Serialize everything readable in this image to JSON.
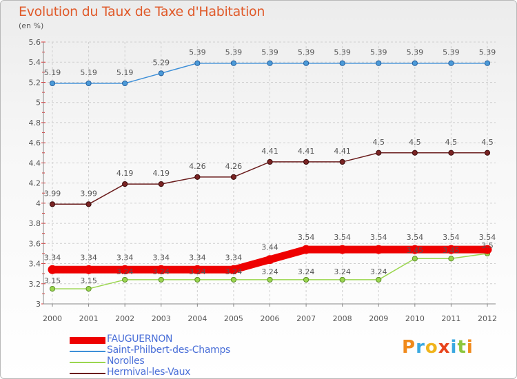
{
  "header": {
    "title": "Evolution du Taux de Taxe d'Habitation",
    "subtitle": "(en %)"
  },
  "chart_data": {
    "type": "line",
    "title": "Evolution du Taux de Taxe d'Habitation",
    "ylabel": "(en %)",
    "xlabel": "",
    "ylim": [
      3,
      5.6
    ],
    "yticks": [
      "3",
      "3.2",
      "3.4",
      "3.6",
      "3.8",
      "4",
      "4.2",
      "4.4",
      "4.6",
      "4.8",
      "5",
      "5.2",
      "5.4",
      "5.6"
    ],
    "x": [
      "2000",
      "2001",
      "2002",
      "2003",
      "2004",
      "2005",
      "2006",
      "2007",
      "2008",
      "2009",
      "2010",
      "2011",
      "2012"
    ],
    "grid": true,
    "legend_position": "bottom-left",
    "series": [
      {
        "name": "FAUGUERNON",
        "color": "#ee0000",
        "values": [
          3.34,
          3.34,
          3.34,
          3.34,
          3.34,
          3.34,
          3.44,
          3.54,
          3.54,
          3.54,
          3.54,
          3.54,
          3.54
        ],
        "labels": [
          "3.34",
          "3.34",
          "3.34",
          "3.34",
          "3.34",
          "3.34",
          "3.44",
          "3.54",
          "3.54",
          "3.54",
          "3.54",
          "3.54",
          "3.54"
        ]
      },
      {
        "name": "Saint-Philbert-des-Champs",
        "color": "#3d8fd8",
        "values": [
          5.19,
          5.19,
          5.19,
          5.29,
          5.39,
          5.39,
          5.39,
          5.39,
          5.39,
          5.39,
          5.39,
          5.39,
          5.39
        ],
        "labels": [
          "5.19",
          "5.19",
          "5.19",
          "5.29",
          "5.39",
          "5.39",
          "5.39",
          "5.39",
          "5.39",
          "5.39",
          "5.39",
          "5.39",
          "5.39"
        ]
      },
      {
        "name": "Norolles",
        "color": "#9ad64e",
        "values": [
          3.15,
          3.15,
          3.24,
          3.24,
          3.24,
          3.24,
          3.24,
          3.24,
          3.24,
          3.24,
          3.45,
          3.45,
          3.5
        ],
        "labels": [
          "3.15",
          "3.15",
          "3.24",
          "3.24",
          "3.24",
          "3.24",
          "3.24",
          "3.24",
          "3.24",
          "3.24",
          "3.45",
          "3.45",
          "3.5"
        ]
      },
      {
        "name": "Hermival-les-Vaux",
        "color": "#6b1e1e",
        "values": [
          3.99,
          3.99,
          4.19,
          4.19,
          4.26,
          4.26,
          4.41,
          4.41,
          4.41,
          4.5,
          4.5,
          4.5,
          4.5
        ],
        "labels": [
          "3.99",
          "3.99",
          "4.19",
          "4.19",
          "4.26",
          "4.26",
          "4.41",
          "4.41",
          "4.41",
          "4.5",
          "4.5",
          "4.5",
          "4.5"
        ]
      }
    ]
  },
  "logo": {
    "letters": [
      "P",
      "r",
      "o",
      "x",
      "i",
      "t",
      "i"
    ],
    "colors": [
      "#f08a1c",
      "#3aa8e0",
      "#f0b41c",
      "#e8441c",
      "#3aa8e0",
      "#8cc63e",
      "#f08a1c"
    ]
  }
}
